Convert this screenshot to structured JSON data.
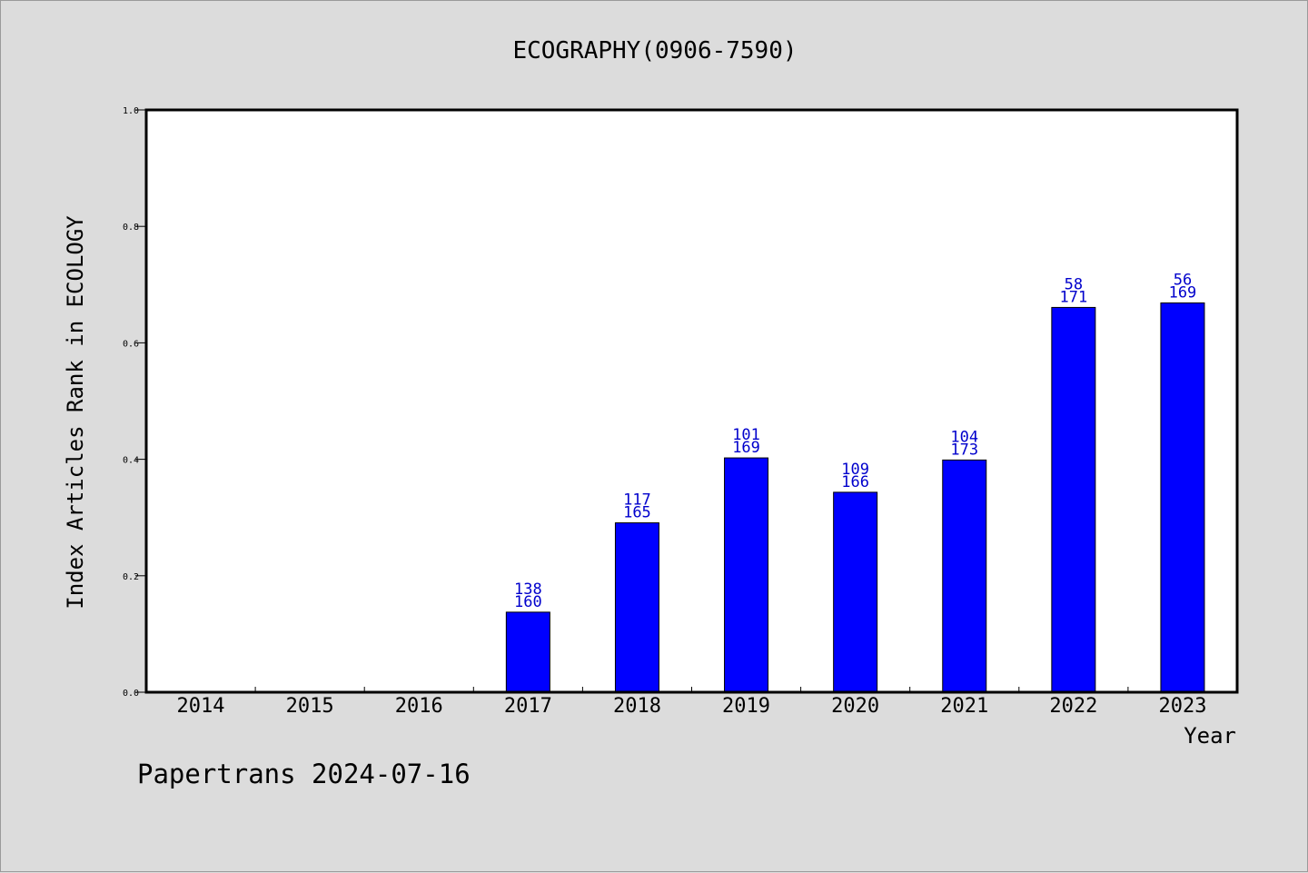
{
  "chart_data": {
    "type": "bar",
    "title": "ECOGRAPHY(0906-7590)",
    "xlabel": "Year",
    "ylabel": "Index Articles Rank in ECOLOGY",
    "ylim": [
      0,
      1.0
    ],
    "yticks": [
      "0.0",
      "0.2",
      "0.4",
      "0.6",
      "0.8",
      "1.0"
    ],
    "categories": [
      "2014",
      "2015",
      "2016",
      "2017",
      "2018",
      "2019",
      "2020",
      "2021",
      "2022",
      "2023"
    ],
    "values": [
      null,
      null,
      null,
      0.1375,
      0.2909,
      0.4024,
      0.3434,
      0.3988,
      0.6608,
      0.6686
    ],
    "labels_top": [
      null,
      null,
      null,
      "138",
      "117",
      "101",
      "109",
      "104",
      "58",
      "56"
    ],
    "labels_bottom": [
      null,
      null,
      null,
      "160",
      "165",
      "169",
      "166",
      "173",
      "171",
      "169"
    ],
    "bar_color": "#0000ff",
    "label_color": "#0000cc",
    "grid": false
  },
  "footer": "Papertrans 2024-07-16"
}
